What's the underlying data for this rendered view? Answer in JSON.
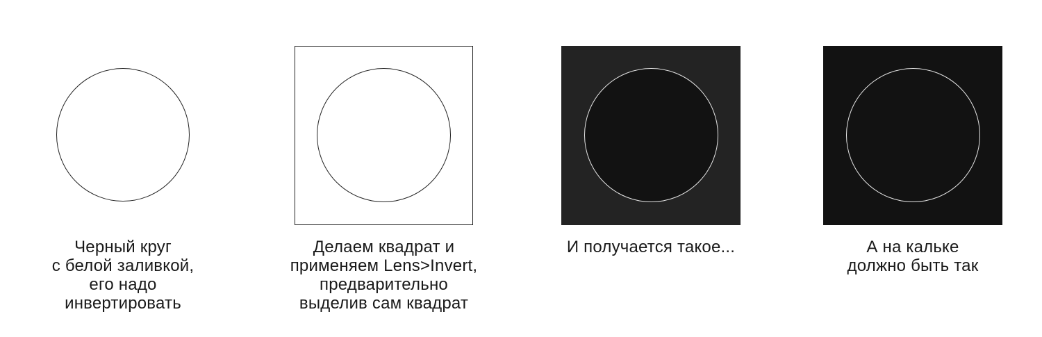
{
  "panels": [
    {
      "caption_lines": [
        "Черный круг",
        "с белой заливкой,",
        "его надо",
        "инвертировать"
      ]
    },
    {
      "caption_lines": [
        "Делаем квадрат и",
        "применяем Lens>Invert,",
        "предварительно",
        "выделив сам квадрат"
      ]
    },
    {
      "caption_lines": [
        "И получается такое..."
      ]
    },
    {
      "caption_lines": [
        "А на кальке",
        "должно быть так"
      ]
    }
  ],
  "colors": {
    "outline_dark": "#222222",
    "outline_light": "#e6e6e6",
    "inverted_square": "#232323",
    "black_fill": "#121212",
    "white_fill": "#ffffff"
  }
}
